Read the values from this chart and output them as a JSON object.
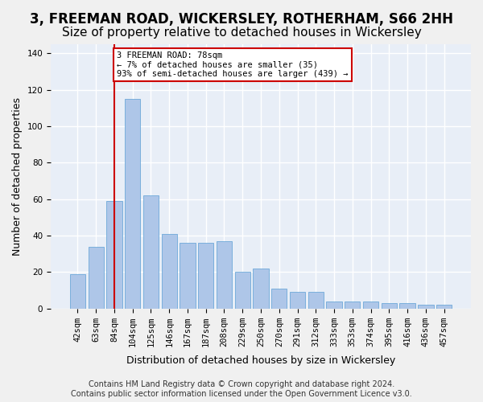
{
  "title": "3, FREEMAN ROAD, WICKERSLEY, ROTHERHAM, S66 2HH",
  "subtitle": "Size of property relative to detached houses in Wickersley",
  "xlabel": "Distribution of detached houses by size in Wickersley",
  "ylabel": "Number of detached properties",
  "categories": [
    "42sqm",
    "63sqm",
    "84sqm",
    "104sqm",
    "125sqm",
    "146sqm",
    "167sqm",
    "187sqm",
    "208sqm",
    "229sqm",
    "250sqm",
    "270sqm",
    "291sqm",
    "312sqm",
    "333sqm",
    "353sqm",
    "374sqm",
    "395sqm",
    "416sqm",
    "436sqm",
    "457sqm"
  ],
  "values": [
    19,
    34,
    59,
    115,
    62,
    41,
    36,
    36,
    37,
    20,
    22,
    11,
    9,
    9,
    4,
    4,
    4,
    3,
    3,
    2,
    2
  ],
  "bar_color": "#aec6e8",
  "bar_edge_color": "#5a9fd4",
  "background_color": "#e8eef7",
  "grid_color": "#ffffff",
  "red_line_x": 2.0,
  "annotation_text": "3 FREEMAN ROAD: 78sqm\n← 7% of detached houses are smaller (35)\n93% of semi-detached houses are larger (439) →",
  "annotation_box_color": "#ffffff",
  "annotation_box_edge": "#cc0000",
  "annotation_text_color": "#000000",
  "footer_line1": "Contains HM Land Registry data © Crown copyright and database right 2024.",
  "footer_line2": "Contains public sector information licensed under the Open Government Licence v3.0.",
  "ylim": [
    0,
    145
  ],
  "yticks": [
    0,
    20,
    40,
    60,
    80,
    100,
    120,
    140
  ],
  "title_fontsize": 12,
  "subtitle_fontsize": 11,
  "ylabel_fontsize": 9,
  "xlabel_fontsize": 9,
  "tick_fontsize": 7.5,
  "footer_fontsize": 7
}
